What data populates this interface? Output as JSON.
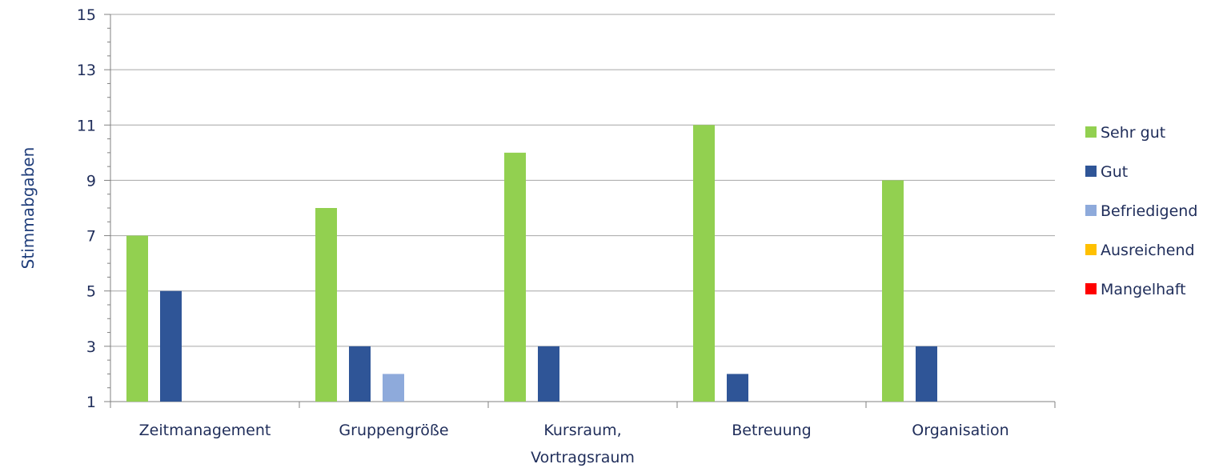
{
  "chart_data": {
    "type": "bar",
    "ylabel": "Stimmabgaben",
    "ylim": [
      1,
      15
    ],
    "yticks": [
      1,
      3,
      5,
      7,
      9,
      11,
      13,
      15
    ],
    "grid": true,
    "legend_position": "right",
    "categories": [
      [
        "Zeitmanagement"
      ],
      [
        "Gruppengröße"
      ],
      [
        "Kursraum,",
        "Vortragsraum"
      ],
      [
        "Betreuung"
      ],
      [
        "Organisation"
      ]
    ],
    "series": [
      {
        "name": "Sehr gut",
        "color": "#92d050",
        "values": [
          7,
          8,
          10,
          11,
          9
        ]
      },
      {
        "name": "Gut",
        "color": "#2f5597",
        "values": [
          5,
          3,
          3,
          2,
          3
        ]
      },
      {
        "name": "Befriedigend",
        "color": "#8eaadb",
        "values": [
          0,
          2,
          0,
          0,
          0
        ]
      },
      {
        "name": "Ausreichend",
        "color": "#ffc000",
        "values": [
          0,
          0,
          0,
          0,
          0
        ]
      },
      {
        "name": "Mangelhaft",
        "color": "#ff0000",
        "values": [
          0,
          0,
          0,
          0,
          0
        ]
      }
    ]
  }
}
